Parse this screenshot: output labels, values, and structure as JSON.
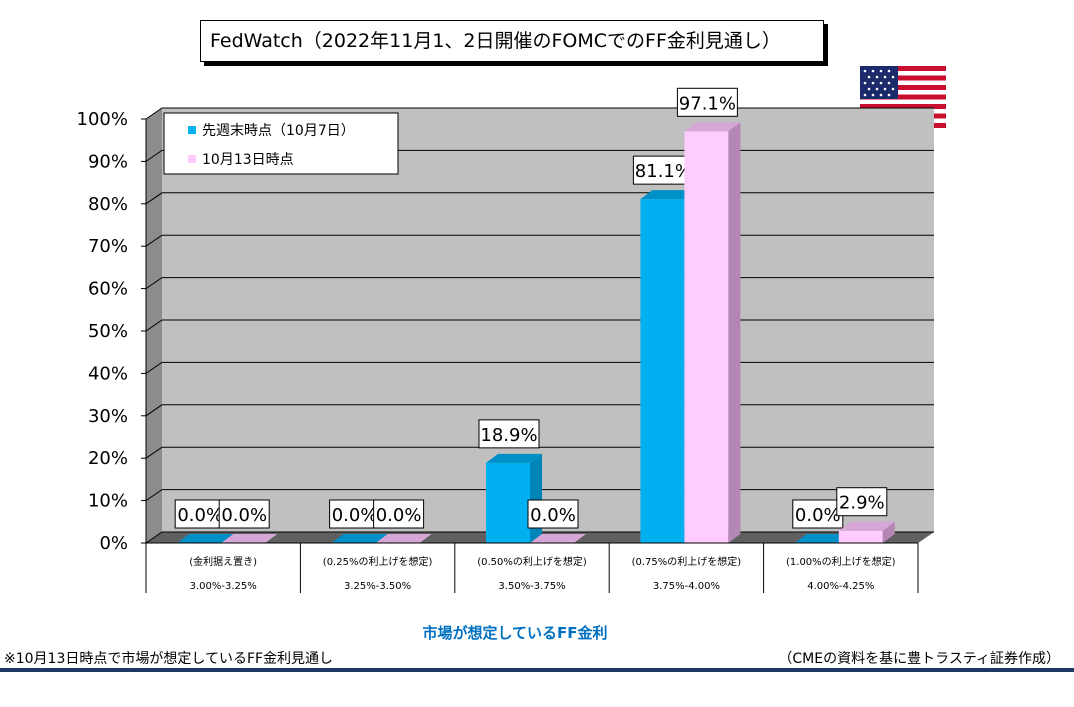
{
  "title": "FedWatch（2022年11月1、2日開催のFOMCでのFF金利見通し）",
  "chart_data": {
    "type": "bar",
    "categories": [
      {
        "line1": "(金利据え置き)",
        "line2": "3.00%-3.25%"
      },
      {
        "line1": "(0.25%の利上げを想定)",
        "line2": "3.25%-3.50%"
      },
      {
        "line1": "(0.50%の利上げを想定)",
        "line2": "3.50%-3.75%"
      },
      {
        "line1": "(0.75%の利上げを想定)",
        "line2": "3.75%-4.00%"
      },
      {
        "line1": "(1.00%の利上げを想定)",
        "line2": "4.00%-4.25%"
      }
    ],
    "series": [
      {
        "name": "先週末時点（10月7日）",
        "values": [
          0.0,
          0.0,
          18.9,
          81.1,
          0.0
        ],
        "color": "#00b0f0",
        "side_color": "#0085b8",
        "top_color": "#0090c8"
      },
      {
        "name": "10月13日時点",
        "values": [
          0.0,
          0.0,
          0.0,
          97.1,
          2.9
        ],
        "color": "#ffccff",
        "side_color": "#b486b4",
        "top_color": "#d6a6d6"
      }
    ],
    "data_labels": [
      [
        "0.0%",
        "0.0%",
        "18.9%",
        "81.1%",
        "0.0%"
      ],
      [
        "0.0%",
        "0.0%",
        "0.0%",
        "97.1%",
        "2.9%"
      ]
    ],
    "y_ticks": [
      "0%",
      "10%",
      "20%",
      "30%",
      "40%",
      "50%",
      "60%",
      "70%",
      "80%",
      "90%",
      "100%"
    ],
    "ylim": [
      0,
      100
    ],
    "grid": true,
    "legend_position": "top-left",
    "xlabel": "市場が想定しているFF金利",
    "ylabel": ""
  },
  "footer": {
    "note": "※10月13日時点で市場が想定しているFF金利見通し",
    "source": "（CMEの資料を基に豊トラスティ証券作成）"
  },
  "colors": {
    "plot_background": "#c0c0c0",
    "plot_wall": "#808080",
    "xtitle": "#0070c0",
    "rule": "#1f3864"
  },
  "icons": {
    "flag": "us-flag-icon"
  }
}
